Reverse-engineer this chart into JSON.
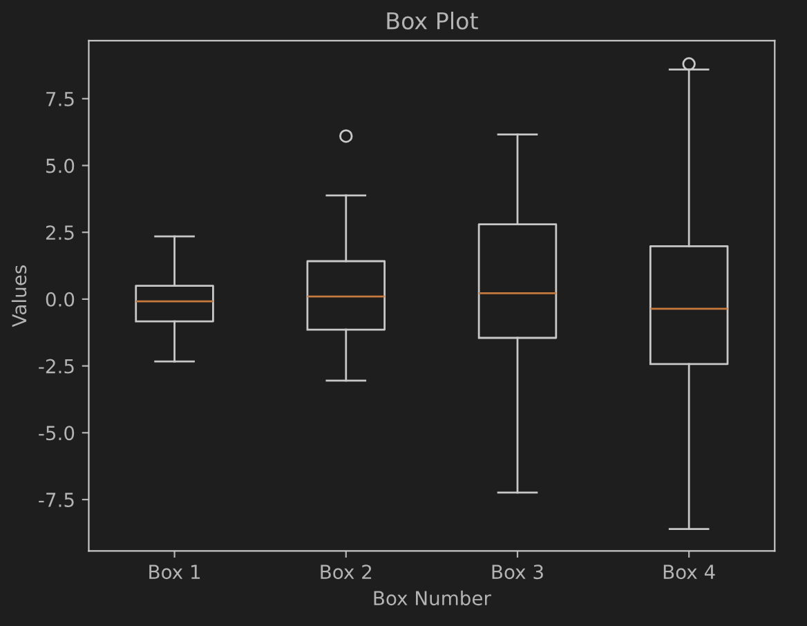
{
  "chart_data": {
    "type": "box",
    "title": "Box Plot",
    "xlabel": "Box Number",
    "ylabel": "Values",
    "categories": [
      "Box 1",
      "Box 2",
      "Box 3",
      "Box 4"
    ],
    "boxes": [
      {
        "low": -2.33,
        "q1": -0.83,
        "median": -0.08,
        "q3": 0.5,
        "high": 2.35
      },
      {
        "low": -3.05,
        "q1": -1.14,
        "median": 0.1,
        "q3": 1.42,
        "high": 3.88,
        "outliers": [
          6.1
        ]
      },
      {
        "low": -7.24,
        "q1": -1.45,
        "median": 0.22,
        "q3": 2.8,
        "high": 6.16
      },
      {
        "low": -8.6,
        "q1": -2.43,
        "median": -0.36,
        "q3": 1.98,
        "high": 8.59,
        "outliers": [
          8.8
        ]
      }
    ],
    "ylim": [
      -9.42,
      9.67
    ],
    "yticks": [
      -7.5,
      {
        "value": -5,
        "label": "-5.0"
      },
      -2.5,
      {
        "value": 0,
        "label": "0.0"
      },
      2.5,
      {
        "value": 5,
        "label": "5.0"
      },
      7.5
    ],
    "grid": false
  }
}
